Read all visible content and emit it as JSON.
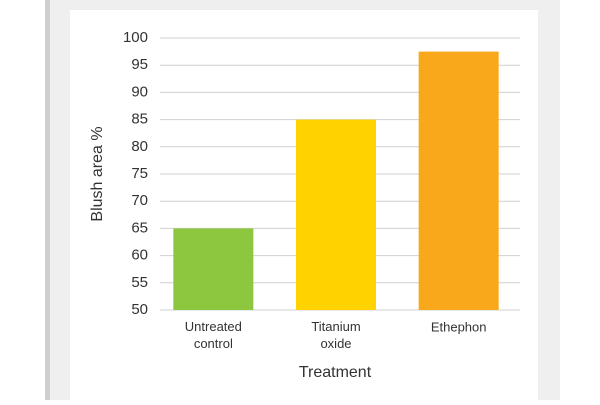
{
  "chart_data": {
    "type": "bar",
    "x_label": "Treatment",
    "y_label": "Blush area %",
    "categories": [
      "Untreated control",
      "Titanium oxide",
      "Ethephon"
    ],
    "values": [
      65,
      85,
      97.5
    ],
    "colors": [
      "#8dc63f",
      "#ffd200",
      "#f9a81b"
    ],
    "ylim": [
      50,
      100
    ],
    "yticks": [
      50,
      55,
      60,
      65,
      70,
      75,
      80,
      85,
      90,
      95,
      100
    ],
    "grid": true
  }
}
